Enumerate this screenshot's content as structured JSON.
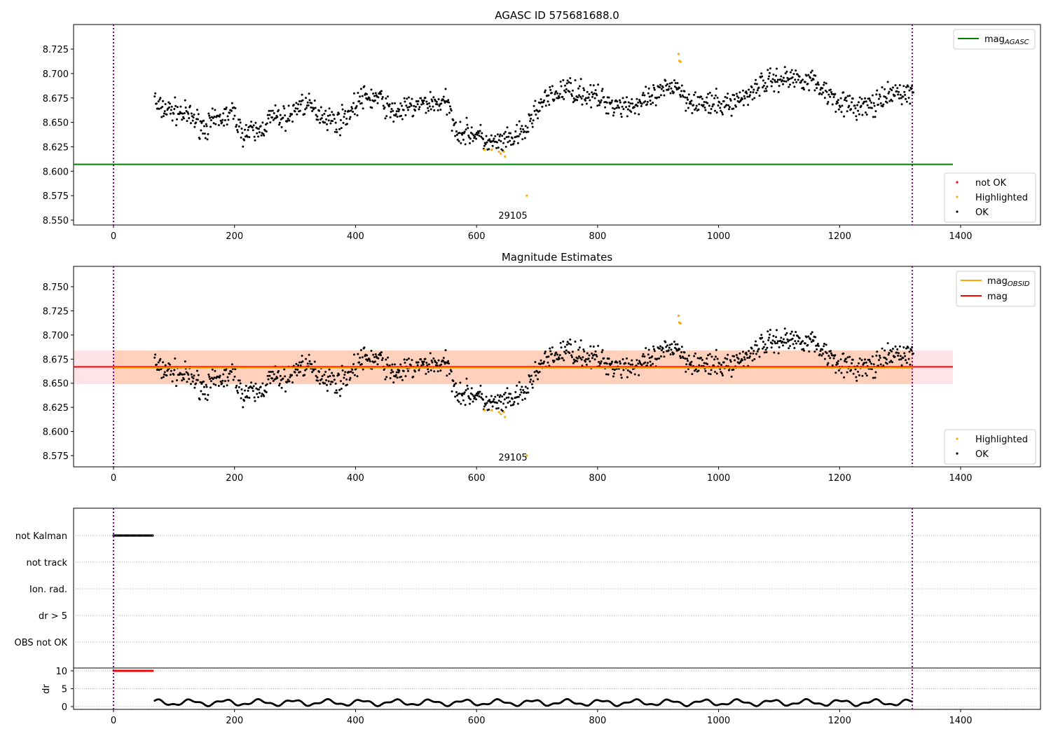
{
  "chart_data": [
    {
      "type": "scatter",
      "title": "AGASC ID 575681688.0",
      "xlim": [
        -66,
        1533
      ],
      "ylim": [
        8.545,
        8.75
      ],
      "xticks": [
        0,
        200,
        400,
        600,
        800,
        1000,
        1200,
        1400
      ],
      "yticks": [
        8.55,
        8.575,
        8.6,
        8.625,
        8.65,
        8.675,
        8.7,
        8.725
      ],
      "mag_agasc": 8.607,
      "obsid_label": "29105",
      "vlines": [
        0,
        1320
      ],
      "legend_line": {
        "label": "mag",
        "sub": "AGASC",
        "color": "#008000"
      },
      "legend_points": [
        {
          "label": "not OK",
          "color": "#ff0000"
        },
        {
          "label": "Highlighted",
          "color": "#ffa500"
        },
        {
          "label": "OK",
          "color": "#000000"
        }
      ]
    },
    {
      "type": "scatter",
      "title": "Magnitude Estimates",
      "xlim": [
        -66,
        1533
      ],
      "ylim": [
        8.564,
        8.771
      ],
      "xticks": [
        0,
        200,
        400,
        600,
        800,
        1000,
        1200,
        1400
      ],
      "yticks": [
        8.575,
        8.6,
        8.625,
        8.65,
        8.675,
        8.7,
        8.725,
        8.75
      ],
      "mag": 8.667,
      "mag_obsid": 8.666,
      "band": [
        8.649,
        8.684
      ],
      "obsid_label": "29105",
      "legend_lines": [
        {
          "label": "mag",
          "sub": "OBSID",
          "color": "#ffa500"
        },
        {
          "label": "mag",
          "sub": "",
          "color": "#ff0000"
        }
      ],
      "legend_points": [
        {
          "label": "Highlighted",
          "color": "#ffa500"
        },
        {
          "label": "OK",
          "color": "#000000"
        }
      ]
    },
    {
      "type": "scatter",
      "flags": [
        "not Kalman",
        "not track",
        "Ion. rad.",
        "dr > 5",
        "OBS not OK"
      ],
      "not_kalman_range": [
        0,
        65
      ],
      "dr_label": "dr",
      "dr_ticks": [
        0,
        5,
        10
      ],
      "dr_ylim": [
        -0.5,
        10.8
      ],
      "xticks": [
        0,
        200,
        400,
        600,
        800,
        1000,
        1200,
        1400
      ]
    }
  ],
  "series": {
    "trend": [
      [
        70,
        8.665
      ],
      [
        100,
        8.662
      ],
      [
        130,
        8.655
      ],
      [
        150,
        8.645
      ],
      [
        180,
        8.655
      ],
      [
        200,
        8.66
      ],
      [
        210,
        8.64
      ],
      [
        240,
        8.64
      ],
      [
        260,
        8.655
      ],
      [
        290,
        8.655
      ],
      [
        310,
        8.67
      ],
      [
        340,
        8.66
      ],
      [
        370,
        8.65
      ],
      [
        390,
        8.66
      ],
      [
        410,
        8.675
      ],
      [
        440,
        8.675
      ],
      [
        460,
        8.66
      ],
      [
        490,
        8.665
      ],
      [
        520,
        8.67
      ],
      [
        550,
        8.67
      ],
      [
        570,
        8.64
      ],
      [
        600,
        8.638
      ],
      [
        620,
        8.628
      ],
      [
        650,
        8.63
      ],
      [
        680,
        8.64
      ],
      [
        700,
        8.665
      ],
      [
        720,
        8.675
      ],
      [
        750,
        8.685
      ],
      [
        800,
        8.675
      ],
      [
        830,
        8.668
      ],
      [
        870,
        8.668
      ],
      [
        900,
        8.678
      ],
      [
        930,
        8.69
      ],
      [
        945,
        8.675
      ],
      [
        980,
        8.668
      ],
      [
        1010,
        8.668
      ],
      [
        1040,
        8.675
      ],
      [
        1070,
        8.69
      ],
      [
        1100,
        8.695
      ],
      [
        1150,
        8.695
      ],
      [
        1180,
        8.68
      ],
      [
        1220,
        8.665
      ],
      [
        1260,
        8.668
      ],
      [
        1290,
        8.68
      ],
      [
        1320,
        8.68
      ]
    ],
    "highlighted": [
      [
        613,
        8.622
      ],
      [
        625,
        8.622
      ],
      [
        637,
        8.62
      ],
      [
        640,
        8.618
      ],
      [
        645,
        8.62
      ],
      [
        647,
        8.615
      ],
      [
        683,
        8.575
      ],
      [
        934,
        8.72
      ],
      [
        935,
        8.713
      ],
      [
        937,
        8.712
      ]
    ]
  }
}
